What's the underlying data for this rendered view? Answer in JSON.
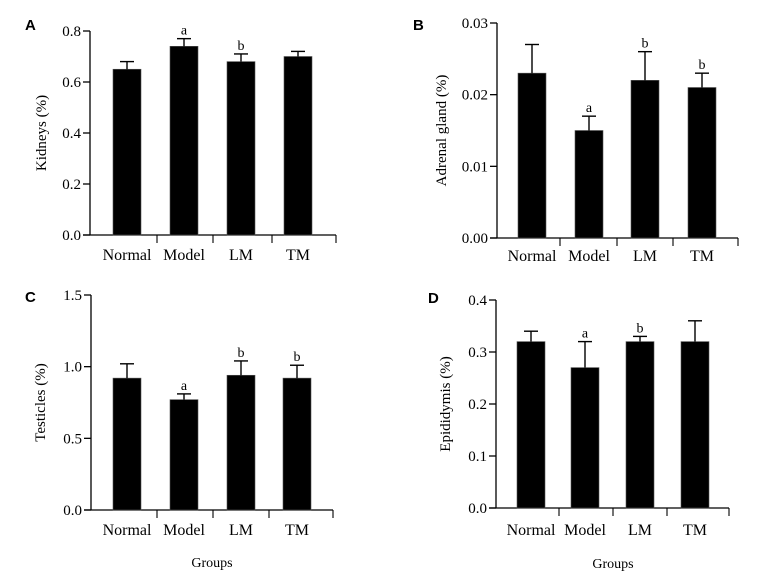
{
  "chart_data": [
    {
      "type": "bar",
      "panel": "A",
      "title": "",
      "xlabel": "",
      "ylabel": "Kidneys (%)",
      "categories": [
        "Normal",
        "Model",
        "LM",
        "TM"
      ],
      "values": [
        0.65,
        0.74,
        0.68,
        0.7
      ],
      "error_upper": [
        0.68,
        0.77,
        0.71,
        0.72
      ],
      "significance": [
        "",
        "a",
        "b",
        ""
      ],
      "ylim": [
        0.0,
        0.8
      ],
      "yticks": [
        0.0,
        0.2,
        0.4,
        0.6,
        0.8
      ],
      "ytick_labels": [
        "0.0",
        "0.2",
        "0.4",
        "0.6",
        "0.8"
      ],
      "grid": false
    },
    {
      "type": "bar",
      "panel": "B",
      "title": "",
      "xlabel": "",
      "ylabel": "Adrenal gland (%)",
      "categories": [
        "Normal",
        "Model",
        "LM",
        "TM"
      ],
      "values": [
        0.023,
        0.015,
        0.022,
        0.021
      ],
      "error_upper": [
        0.027,
        0.017,
        0.026,
        0.023
      ],
      "significance": [
        "",
        "a",
        "b",
        "b"
      ],
      "ylim": [
        0.0,
        0.03
      ],
      "yticks": [
        0.0,
        0.01,
        0.02,
        0.03
      ],
      "ytick_labels": [
        "0.00",
        "0.01",
        "0.02",
        "0.03"
      ],
      "grid": false
    },
    {
      "type": "bar",
      "panel": "C",
      "title": "",
      "xlabel": "Groups",
      "ylabel": "Testicles (%)",
      "categories": [
        "Normal",
        "Model",
        "LM",
        "TM"
      ],
      "values": [
        0.92,
        0.77,
        0.94,
        0.92
      ],
      "error_upper": [
        1.02,
        0.81,
        1.04,
        1.01
      ],
      "significance": [
        "",
        "a",
        "b",
        "b"
      ],
      "ylim": [
        0.0,
        1.5
      ],
      "yticks": [
        0.0,
        0.5,
        1.0,
        1.5
      ],
      "ytick_labels": [
        "0.0",
        "0.5",
        "1.0",
        "1.5"
      ],
      "grid": false
    },
    {
      "type": "bar",
      "panel": "D",
      "title": "",
      "xlabel": "Groups",
      "ylabel": "Epididymis (%)",
      "categories": [
        "Normal",
        "Model",
        "LM",
        "TM"
      ],
      "values": [
        0.32,
        0.27,
        0.32,
        0.32
      ],
      "error_upper": [
        0.34,
        0.32,
        0.33,
        0.36
      ],
      "significance": [
        "",
        "a",
        "b",
        ""
      ],
      "ylim": [
        0.0,
        0.4
      ],
      "yticks": [
        0.0,
        0.1,
        0.2,
        0.3,
        0.4
      ],
      "ytick_labels": [
        "0.0",
        "0.1",
        "0.2",
        "0.3",
        "0.4"
      ],
      "grid": false
    }
  ],
  "colors": {
    "bar_fill": "#000000",
    "axis": "#000000",
    "background": "#ffffff"
  }
}
